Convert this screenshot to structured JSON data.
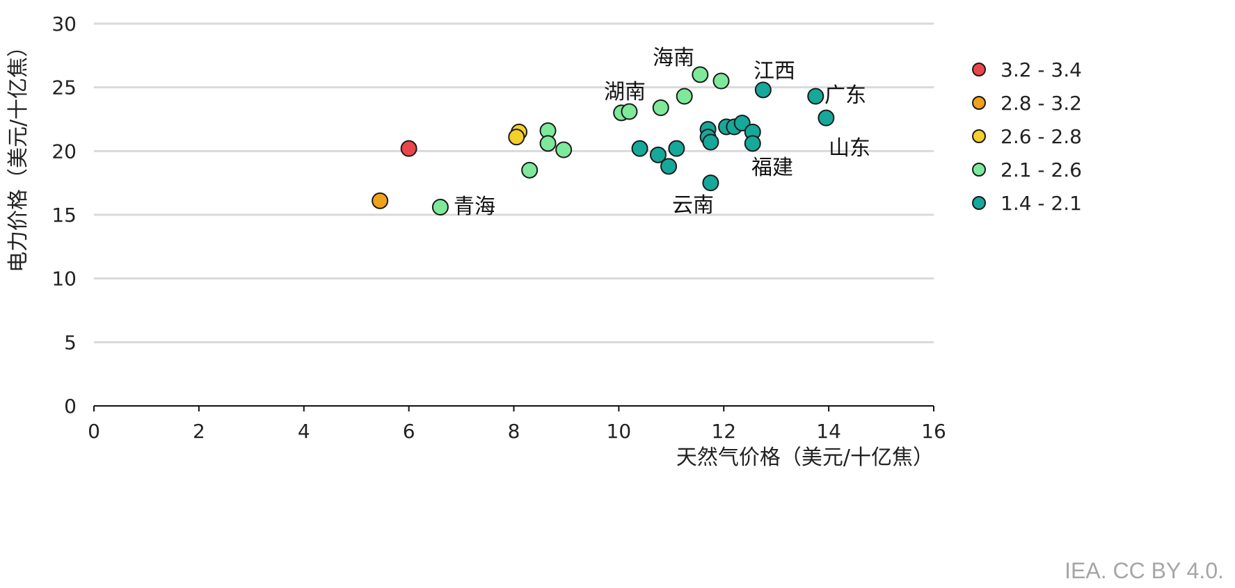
{
  "chart_data": {
    "type": "scatter",
    "xlabel": "天然气价格（美元/十亿焦）",
    "ylabel": "电力价格（美元/十亿焦）",
    "xlim": [
      0,
      16
    ],
    "ylim": [
      0,
      30
    ],
    "xticks": [
      0,
      2,
      4,
      6,
      8,
      10,
      12,
      14,
      16
    ],
    "yticks": [
      0,
      5,
      10,
      15,
      20,
      25,
      30
    ],
    "grid": "horizontal",
    "legend_position": "right",
    "series": [
      {
        "name": "3.2 - 3.4",
        "color": "#e8474c",
        "points": [
          [
            6.0,
            20.2
          ]
        ]
      },
      {
        "name": "2.8 - 3.2",
        "color": "#f0a21a",
        "points": [
          [
            5.45,
            16.1
          ]
        ]
      },
      {
        "name": "2.6 - 2.8",
        "color": "#f5cf2b",
        "points": [
          [
            8.1,
            21.5
          ],
          [
            8.05,
            21.1
          ]
        ]
      },
      {
        "name": "2.1 - 2.6",
        "color": "#7ee99b",
        "points": [
          [
            6.6,
            15.6
          ],
          [
            8.3,
            18.5
          ],
          [
            8.65,
            21.6
          ],
          [
            8.65,
            20.6
          ],
          [
            8.95,
            20.1
          ],
          [
            10.05,
            23.0
          ],
          [
            10.2,
            23.1
          ],
          [
            10.8,
            23.4
          ],
          [
            11.25,
            24.3
          ],
          [
            11.55,
            26.0
          ],
          [
            11.95,
            25.5
          ]
        ]
      },
      {
        "name": "1.4 - 2.1",
        "color": "#16a89b",
        "points": [
          [
            10.4,
            20.2
          ],
          [
            10.75,
            19.7
          ],
          [
            10.95,
            18.8
          ],
          [
            11.1,
            20.2
          ],
          [
            11.75,
            17.5
          ],
          [
            11.7,
            21.7
          ],
          [
            11.7,
            21.1
          ],
          [
            11.75,
            20.7
          ],
          [
            12.05,
            21.9
          ],
          [
            12.2,
            21.9
          ],
          [
            12.35,
            22.2
          ],
          [
            12.55,
            21.5
          ],
          [
            12.55,
            20.6
          ],
          [
            12.75,
            24.8
          ],
          [
            13.75,
            24.3
          ],
          [
            13.95,
            22.6
          ]
        ]
      }
    ],
    "annotations": [
      "青海",
      "湖南",
      "海南",
      "江西",
      "广东",
      "山东",
      "福建",
      "云南"
    ]
  },
  "source": "IEA. CC BY 4.0."
}
